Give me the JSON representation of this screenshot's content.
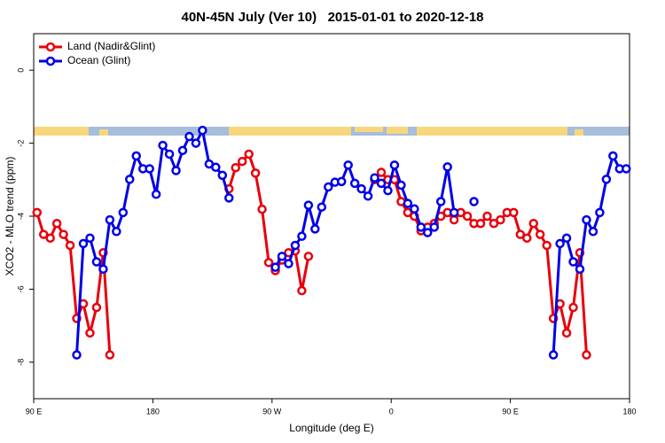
{
  "chart_data": {
    "type": "line",
    "title": "40N-45N July (Ver 10)   2015-01-01 to 2020-12-18",
    "xlabel": "Longitude (deg E)",
    "ylabel": "XCO2 - MLO trend (ppm)",
    "xlim": [
      90,
      540
    ],
    "xticks": [
      {
        "value": 90,
        "label": "90 E"
      },
      {
        "value": 180,
        "label": "180"
      },
      {
        "value": 270,
        "label": "90 W"
      },
      {
        "value": 360,
        "label": "0"
      },
      {
        "value": 450,
        "label": "90 E"
      },
      {
        "value": 540,
        "label": "180"
      }
    ],
    "ylim": [
      -9,
      1
    ],
    "yticks": [
      0,
      -2,
      -4,
      -6,
      -8
    ],
    "legend": "top-left",
    "series": [
      {
        "name": "Land (Nadir&Glint)",
        "color": "#e8000b",
        "x": [
          92.5,
          97.5,
          102.5,
          107.5,
          112.5,
          117.5,
          122.5,
          127.5,
          132.5,
          137.5,
          142.5,
          147.5,
          null,
          237.5,
          242.5,
          247.5,
          252.5,
          257.5,
          262.5,
          267.5,
          272.5,
          277.5,
          282.5,
          287.5,
          292.5,
          297.5,
          null,
          347.5,
          352.5,
          357.5,
          362.5,
          367.5,
          372.5,
          377.5,
          382.5,
          387.5,
          392.5,
          397.5,
          402.5,
          407.5,
          412.5,
          417.5,
          422.5,
          427.5,
          432.5,
          437.5,
          442.5,
          447.5,
          452.5,
          457.5,
          462.5,
          467.5,
          472.5,
          477.5,
          482.5,
          487.5,
          492.5,
          497.5,
          502.5,
          507.5
        ],
        "values": [
          -3.9,
          -4.5,
          -4.6,
          -4.2,
          -4.5,
          -4.8,
          -6.8,
          -6.4,
          -7.2,
          -6.5,
          -5.0,
          -7.8,
          null,
          -3.25,
          -2.67,
          -2.5,
          -2.3,
          -2.82,
          -3.81,
          -5.27,
          -5.49,
          -5.2,
          -5.0,
          -4.95,
          -6.04,
          -5.1,
          null,
          -3.0,
          -2.8,
          -3.0,
          -3.0,
          -3.6,
          -3.9,
          -4.0,
          -4.4,
          -4.3,
          -4.2,
          -4.0,
          -3.9,
          -4.1,
          -3.9,
          -4.0,
          -4.2,
          -4.2,
          -4.0,
          -4.2,
          -4.1,
          -3.9,
          -3.9,
          -4.5,
          -4.6,
          -4.2,
          -4.5,
          -4.8,
          -6.8,
          -6.4,
          -7.2,
          -6.5,
          -5.0,
          -7.8
        ]
      },
      {
        "name": "Ocean (Glint)",
        "color": "#0000e8",
        "x": [
          122.5,
          127.5,
          132.5,
          137.5,
          142.5,
          147.5,
          152.5,
          157.5,
          162.5,
          167.5,
          172.5,
          177.5,
          182.5,
          187.5,
          192.5,
          197.5,
          202.5,
          207.5,
          212.5,
          217.5,
          222.5,
          227.5,
          232.5,
          237.5,
          null,
          272.5,
          277.5,
          282.5,
          287.5,
          292.5,
          297.5,
          302.5,
          307.5,
          312.5,
          317.5,
          322.5,
          327.5,
          332.5,
          337.5,
          342.5,
          347.5,
          352.5,
          357.5,
          362.5,
          367.5,
          372.5,
          377.5,
          382.5,
          387.5,
          392.5,
          397.5,
          402.5,
          407.5,
          null,
          422.5,
          null,
          482.5,
          487.5,
          492.5,
          497.5,
          502.5,
          507.5,
          512.5,
          517.5,
          522.5,
          527.5,
          532.5,
          537.5
        ],
        "values": [
          -7.8,
          -4.75,
          -4.6,
          -5.25,
          -5.45,
          -4.1,
          -4.42,
          -3.9,
          -2.99,
          -2.35,
          -2.7,
          -2.7,
          -3.4,
          -2.06,
          -2.3,
          -2.75,
          -2.2,
          -1.82,
          -2.0,
          -1.65,
          -2.57,
          -2.66,
          -2.88,
          -3.5,
          null,
          -5.4,
          -5.1,
          -5.3,
          -4.8,
          -4.55,
          -3.7,
          -4.35,
          -3.75,
          -3.2,
          -3.07,
          -3.05,
          -2.6,
          -3.1,
          -3.25,
          -3.45,
          -2.95,
          -3.1,
          -3.3,
          -2.6,
          -3.15,
          -3.65,
          -3.8,
          -4.3,
          -4.45,
          -4.3,
          -3.6,
          -2.65,
          -3.9,
          null,
          -3.6,
          null,
          -7.8,
          -4.75,
          -4.6,
          -5.25,
          -5.45,
          -4.1,
          -4.42,
          -3.9,
          -2.99,
          -2.35,
          -2.7,
          -2.7
        ]
      }
    ]
  }
}
